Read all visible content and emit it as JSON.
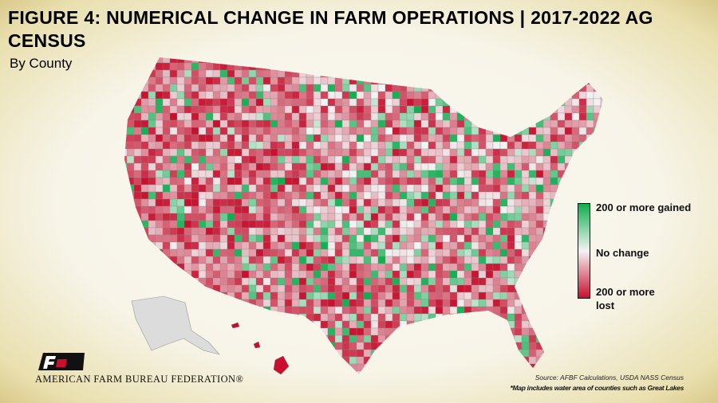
{
  "title": "FIGURE 4: NUMERICAL CHANGE IN FARM OPERATIONS | 2017-2022 AG CENSUS",
  "subtitle": "By County",
  "legend": {
    "top": "200 or more gained",
    "middle": "No change",
    "bottom": "200 or more lost",
    "colors": {
      "gained": "#0fae4f",
      "none": "#f3f3f3",
      "lost": "#c8102e"
    }
  },
  "footer": {
    "organization": "AMERICAN FARM BUREAU FEDERATION®",
    "logo_text": "FB",
    "source": "Source: AFBF Calculations, USDA NASS Census",
    "note": "*Map includes water area of counties such as Great Lakes"
  }
}
